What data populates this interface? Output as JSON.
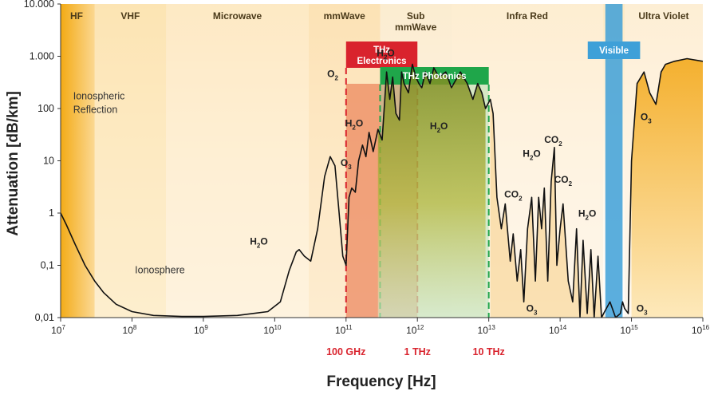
{
  "chart_data": {
    "type": "line",
    "xlabel": "Frequency [Hz]",
    "ylabel": "Attenuation [dB/km]",
    "x_scale": "log",
    "y_scale": "log",
    "xlim": [
      10000000.0,
      1e+16
    ],
    "ylim": [
      0.01,
      10000
    ],
    "x_ticks": [
      {
        "value": 10000000.0,
        "base": "10",
        "exp": "7"
      },
      {
        "value": 100000000.0,
        "base": "10",
        "exp": "8"
      },
      {
        "value": 1000000000.0,
        "base": "10",
        "exp": "9"
      },
      {
        "value": 10000000000.0,
        "base": "10",
        "exp": "10"
      },
      {
        "value": 100000000000.0,
        "base": "10",
        "exp": "11"
      },
      {
        "value": 1000000000000.0,
        "base": "10",
        "exp": "12"
      },
      {
        "value": 10000000000000.0,
        "base": "10",
        "exp": "13"
      },
      {
        "value": 100000000000000.0,
        "base": "10",
        "exp": "14"
      },
      {
        "value": 1000000000000000.0,
        "base": "10",
        "exp": "15"
      },
      {
        "value": 1e+16,
        "base": "10",
        "exp": "16"
      }
    ],
    "y_ticks": [
      {
        "value": 0.01,
        "label": "0,01"
      },
      {
        "value": 0.1,
        "label": "0,1"
      },
      {
        "value": 1,
        "label": "1"
      },
      {
        "value": 10,
        "label": "10"
      },
      {
        "value": 100,
        "label": "100"
      },
      {
        "value": 1000,
        "label": "1.000"
      },
      {
        "value": 10000,
        "label": "10.000"
      }
    ],
    "frequency_markers": [
      {
        "value": 100000000000.0,
        "label": "100 GHz"
      },
      {
        "value": 1000000000000.0,
        "label": "1 THz"
      },
      {
        "value": 10000000000000.0,
        "label": "10 THz"
      }
    ],
    "bands": [
      {
        "label": "HF",
        "from": 10000000.0,
        "to": 30000000.0
      },
      {
        "label": "VHF",
        "from": 30000000.0,
        "to": 300000000.0
      },
      {
        "label": "Microwave",
        "from": 300000000.0,
        "to": 30000000000.0
      },
      {
        "label": "mmWave",
        "from": 30000000000.0,
        "to": 300000000000.0
      },
      {
        "label": "Sub mmWave",
        "from": 300000000000.0,
        "to": 3000000000000.0
      },
      {
        "label": "Infra Red",
        "from": 3000000000000.0,
        "to": 400000000000000.0
      },
      {
        "label": "Ultra Violet",
        "from": 800000000000000.0,
        "to": 1e+16
      }
    ],
    "highlight_regions": [
      {
        "label": "THz Electronics",
        "from": 100000000000.0,
        "to": 1000000000000.0,
        "color": "#d9232d"
      },
      {
        "label": "THz Photonics",
        "from": 300000000000.0,
        "to": 10000000000000.0,
        "color": "#1fa64a"
      },
      {
        "label": "Visible",
        "from": 430000000000000.0,
        "to": 750000000000000.0,
        "color": "#3ea0d8"
      }
    ],
    "region_annotations": [
      {
        "label": "Ionospheric Reflection",
        "x": 15000000.0,
        "y": 150
      },
      {
        "label": "Ionosphere",
        "x": 110000000.0,
        "y": 0.07
      }
    ],
    "molecule_labels": [
      {
        "main": "H",
        "sub": "2",
        "post": "O",
        "x": 6000000000.0,
        "y": 0.25
      },
      {
        "main": "O",
        "sub": "2",
        "post": "",
        "x": 65000000000.0,
        "y": 400
      },
      {
        "main": "O",
        "sub": "3",
        "post": "",
        "x": 100000000000.0,
        "y": 8
      },
      {
        "main": "H",
        "sub": "2",
        "post": "O",
        "x": 130000000000.0,
        "y": 45
      },
      {
        "main": "H",
        "sub": "2",
        "post": "O",
        "x": 360000000000.0,
        "y": 1000
      },
      {
        "main": "H",
        "sub": "2",
        "post": "O",
        "x": 2000000000000.0,
        "y": 40
      },
      {
        "main": "H",
        "sub": "2",
        "post": "O",
        "x": 40000000000000.0,
        "y": 12
      },
      {
        "main": "CO",
        "sub": "2",
        "post": "",
        "x": 22000000000000.0,
        "y": 2
      },
      {
        "main": "CO",
        "sub": "2",
        "post": "",
        "x": 80000000000000.0,
        "y": 22
      },
      {
        "main": "CO",
        "sub": "2",
        "post": "",
        "x": 110000000000000.0,
        "y": 3.8
      },
      {
        "main": "H",
        "sub": "2",
        "post": "O",
        "x": 240000000000000.0,
        "y": 0.85
      },
      {
        "main": "O",
        "sub": "3",
        "post": "",
        "x": 40000000000000.0,
        "y": 0.013
      },
      {
        "main": "O",
        "sub": "3",
        "post": "",
        "x": 1400000000000000.0,
        "y": 0.013
      },
      {
        "main": "O",
        "sub": "3",
        "post": "",
        "x": 1600000000000000.0,
        "y": 60
      }
    ],
    "series": [
      {
        "color": "#111111",
        "x": [
          10000000.0,
          12000000.0,
          16000000.0,
          22000000.0,
          30000000.0,
          40000000.0,
          60000000.0,
          100000000.0,
          200000000.0,
          500000000.0,
          1000000000.0,
          3000000000.0,
          5000000000.0,
          8000000000.0,
          12000000000.0,
          16000000000.0,
          20000000000.0,
          22000000000.0,
          26000000000.0,
          32000000000.0,
          40000000000.0,
          50000000000.0,
          60000000000.0,
          70000000000.0,
          80000000000.0,
          90000000000.0,
          100000000000.0,
          110000000000.0,
          120000000000.0,
          135000000000.0,
          150000000000.0,
          170000000000.0,
          190000000000.0,
          210000000000.0,
          240000000000.0,
          280000000000.0,
          320000000000.0,
          370000000000.0,
          410000000000.0,
          450000000000.0,
          500000000000.0,
          560000000000.0,
          600000000000.0,
          650000000000.0,
          750000000000.0,
          850000000000.0,
          950000000000.0,
          1050000000000.0,
          1150000000000.0,
          1300000000000.0,
          1500000000000.0,
          1700000000000.0,
          2000000000000.0,
          2500000000000.0,
          3000000000000.0,
          4000000000000.0,
          5000000000000.0,
          6000000000000.0,
          7000000000000.0,
          8000000000000.0,
          9000000000000.0,
          10500000000000.0,
          11500000000000.0,
          13000000000000.0,
          15000000000000.0,
          17000000000000.0,
          20000000000000.0,
          22000000000000.0,
          25000000000000.0,
          28000000000000.0,
          31000000000000.0,
          35000000000000.0,
          40000000000000.0,
          45000000000000.0,
          50000000000000.0,
          55000000000000.0,
          60000000000000.0,
          67000000000000.0,
          75000000000000.0,
          83000000000000.0,
          90000000000000.0,
          100000000000000.0,
          110000000000000.0,
          130000000000000.0,
          150000000000000.0,
          170000000000000.0,
          190000000000000.0,
          210000000000000.0,
          240000000000000.0,
          270000000000000.0,
          300000000000000.0,
          340000000000000.0,
          380000000000000.0,
          420000000000000.0,
          500000000000000.0,
          600000000000000.0,
          700000000000000.0,
          750000000000000.0,
          800000000000000.0,
          900000000000000.0,
          1000000000000000.0,
          1200000000000000.0,
          1500000000000000.0,
          1800000000000000.0,
          2200000000000000.0,
          2600000000000000.0,
          3000000000000000.0,
          4000000000000000.0,
          6000000000000000.0,
          1e+16
        ],
        "y": [
          1,
          0.6,
          0.25,
          0.1,
          0.05,
          0.03,
          0.018,
          0.013,
          0.011,
          0.0105,
          0.0105,
          0.011,
          0.012,
          0.013,
          0.02,
          0.08,
          0.18,
          0.2,
          0.15,
          0.12,
          0.5,
          5,
          12,
          8,
          1,
          0.15,
          0.1,
          2,
          3,
          2.5,
          10,
          20,
          12,
          35,
          15,
          40,
          25,
          500,
          150,
          400,
          80,
          60,
          500,
          300,
          200,
          700,
          400,
          300,
          250,
          500,
          300,
          600,
          400,
          500,
          250,
          500,
          300,
          150,
          300,
          200,
          100,
          150,
          80,
          2,
          0.5,
          1.5,
          0.12,
          0.4,
          0.05,
          0.2,
          0.02,
          0.5,
          2,
          0.05,
          2,
          0.5,
          3,
          0.05,
          4,
          18,
          0.1,
          0.5,
          1.5,
          0.05,
          0.02,
          0.5,
          0.01,
          0.3,
          0.012,
          0.2,
          0.01,
          0.15,
          0.01,
          0.013,
          0.02,
          0.01,
          0.012,
          0.02,
          0.015,
          0.012,
          10,
          300,
          500,
          200,
          120,
          500,
          700,
          800,
          900,
          800
        ]
      }
    ]
  }
}
